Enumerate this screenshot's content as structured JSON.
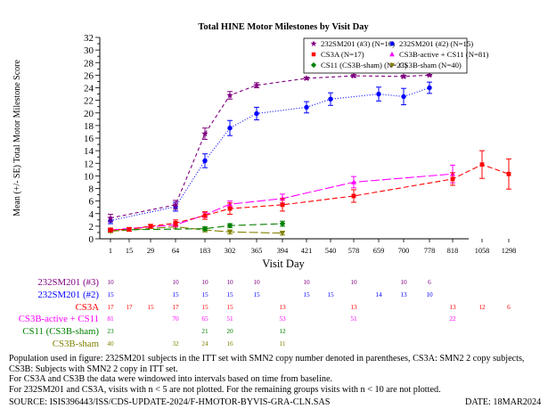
{
  "chart_data": {
    "type": "line",
    "title": "Total HINE Motor Milestones by Visit Day",
    "ylabel": "Mean (+/- SE) Total Motor Milestone Score",
    "xlabel": "Visit Day",
    "ylim": [
      0,
      32
    ],
    "yticks": [
      0,
      1,
      2,
      3,
      4,
      5,
      6,
      7,
      8,
      9,
      10,
      11,
      12,
      13,
      14,
      15,
      16,
      17,
      18,
      19,
      20,
      21,
      22,
      23,
      24,
      25,
      26,
      27,
      28,
      29,
      30,
      31,
      32
    ],
    "ytick_labels": [
      0,
      2,
      4,
      6,
      8,
      10,
      12,
      14,
      16,
      18,
      20,
      22,
      24,
      26,
      28,
      30,
      32
    ],
    "categories": [
      "1",
      "15",
      "29",
      "64",
      "183",
      "302",
      "365",
      "394",
      "421",
      "540",
      "578",
      "659",
      "700",
      "778",
      "818",
      "1058",
      "1298"
    ],
    "legend_position": "top-right",
    "series": [
      {
        "name": "232SM201 (#3) (N=10)",
        "table_label": "232SM201 (#3)",
        "color": "#800080",
        "marker": "star",
        "dash": "4,3",
        "points": [
          {
            "x": "1",
            "y": 3.3,
            "se": 0.6
          },
          {
            "x": "64",
            "y": 5.4,
            "se": 0.7
          },
          {
            "x": "183",
            "y": 16.7,
            "se": 0.9
          },
          {
            "x": "302",
            "y": 22.8,
            "se": 0.6
          },
          {
            "x": "365",
            "y": 24.4,
            "se": 0.4
          },
          {
            "x": "421",
            "y": 25.5,
            "se": 0.2
          },
          {
            "x": "578",
            "y": 25.9,
            "se": 0.2
          },
          {
            "x": "700",
            "y": 25.8,
            "se": 0.2
          },
          {
            "x": "778",
            "y": 26.0,
            "se": 0.1
          }
        ]
      },
      {
        "name": "232SM201 (#2) (N=15)",
        "table_label": "232SM201 (#2)",
        "color": "#0000ff",
        "marker": "circle",
        "dash": "1,2",
        "points": [
          {
            "x": "1",
            "y": 2.9,
            "se": 0.5
          },
          {
            "x": "64",
            "y": 5.1,
            "se": 0.7
          },
          {
            "x": "183",
            "y": 12.4,
            "se": 1.1
          },
          {
            "x": "302",
            "y": 17.6,
            "se": 1.2
          },
          {
            "x": "365",
            "y": 19.9,
            "se": 1.0
          },
          {
            "x": "421",
            "y": 20.9,
            "se": 0.9
          },
          {
            "x": "540",
            "y": 22.2,
            "se": 1.0
          },
          {
            "x": "659",
            "y": 23.0,
            "se": 1.1
          },
          {
            "x": "700",
            "y": 22.6,
            "se": 1.3
          },
          {
            "x": "778",
            "y": 24.0,
            "se": 0.9
          }
        ]
      },
      {
        "name": "CS3A (N=17)",
        "table_label": "CS3A",
        "color": "#ff0000",
        "marker": "square",
        "dash": "6,3",
        "points": [
          {
            "x": "1",
            "y": 1.4,
            "se": 0.3
          },
          {
            "x": "15",
            "y": 1.5,
            "se": 0.3
          },
          {
            "x": "29",
            "y": 2.0,
            "se": 0.3
          },
          {
            "x": "64",
            "y": 2.5,
            "se": 0.5
          },
          {
            "x": "183",
            "y": 3.7,
            "se": 0.6
          },
          {
            "x": "302",
            "y": 4.8,
            "se": 0.9
          },
          {
            "x": "394",
            "y": 5.4,
            "se": 1.0
          },
          {
            "x": "578",
            "y": 6.8,
            "se": 1.0
          },
          {
            "x": "818",
            "y": 9.5,
            "se": 1.0
          },
          {
            "x": "1058",
            "y": 11.8,
            "se": 2.2
          },
          {
            "x": "1298",
            "y": 10.3,
            "se": 2.4
          }
        ]
      },
      {
        "name": "CS3B-active + CS11 (N=81)",
        "table_label": "CS3B-active + CS11",
        "color": "#ff00ff",
        "marker": "triangle-up",
        "dash": "10,3",
        "points": [
          {
            "x": "1",
            "y": 1.4,
            "se": 0.2
          },
          {
            "x": "64",
            "y": 2.2,
            "se": 0.3
          },
          {
            "x": "183",
            "y": 3.8,
            "se": 0.4
          },
          {
            "x": "302",
            "y": 5.5,
            "se": 0.5
          },
          {
            "x": "394",
            "y": 6.4,
            "se": 0.7
          },
          {
            "x": "578",
            "y": 9.0,
            "se": 0.9
          },
          {
            "x": "818",
            "y": 10.3,
            "se": 1.4
          }
        ]
      },
      {
        "name": "CS11 (CS3B-sham) (N=23)",
        "table_label": "CS11 (CS3B-sham)",
        "color": "#008000",
        "marker": "diamond",
        "dash": "8,4",
        "points": [
          {
            "x": "1",
            "y": 1.4,
            "se": 0.2
          },
          {
            "x": "183",
            "y": 1.6,
            "se": 0.3
          },
          {
            "x": "302",
            "y": 2.1,
            "se": 0.3
          },
          {
            "x": "394",
            "y": 2.4,
            "se": 0.4
          }
        ]
      },
      {
        "name": "CS3B-sham (N=40)",
        "table_label": "CS3B-sham",
        "color": "#808000",
        "marker": "triangle-down",
        "dash": "10,3",
        "points": [
          {
            "x": "1",
            "y": 1.2,
            "se": 0.2
          },
          {
            "x": "64",
            "y": 1.9,
            "se": 0.3
          },
          {
            "x": "183",
            "y": 1.4,
            "se": 0.3
          },
          {
            "x": "302",
            "y": 1.1,
            "se": 0.3
          },
          {
            "x": "394",
            "y": 0.9,
            "se": 0.3
          }
        ]
      }
    ],
    "n_at_risk": [
      {
        "label": "232SM201 (#3)",
        "values": {
          "1": "10",
          "64": "10",
          "183": "10",
          "302": "10",
          "365": "10",
          "421": "10",
          "578": "10",
          "700": "10",
          "778": "6"
        }
      },
      {
        "label": "232SM201 (#2)",
        "values": {
          "1": "15",
          "64": "15",
          "183": "15",
          "302": "15",
          "365": "15",
          "421": "15",
          "540": "15",
          "659": "14",
          "700": "13",
          "778": "10"
        }
      },
      {
        "label": "CS3A",
        "values": {
          "1": "17",
          "15": "17",
          "29": "15",
          "64": "17",
          "183": "15",
          "302": "15",
          "394": "13",
          "578": "13",
          "818": "13",
          "1058": "12",
          "1298": "6"
        }
      },
      {
        "label": "CS3B-active + CS11",
        "values": {
          "1": "81",
          "64": "70",
          "183": "65",
          "302": "51",
          "394": "53",
          "578": "51",
          "818": "22"
        }
      },
      {
        "label": "CS11 (CS3B-sham)",
        "values": {
          "1": "23",
          "183": "21",
          "302": "20",
          "394": "12"
        }
      },
      {
        "label": "CS3B-sham",
        "values": {
          "1": "40",
          "64": "32",
          "183": "24",
          "302": "16",
          "394": "11"
        }
      }
    ]
  },
  "footnotes": [
    "Population used in figure: 232SM201 subjects in the ITT set with SMN2 copy number denoted in parentheses, CS3A: SMN2 2 copy subjects,",
    "CS3B: Subjects with SMN2 2 copy in ITT set.",
    "For CS3A and CS3B the data were windowed into intervals based on time from baseline.",
    "For 232SM201 and CS3A, visits with n < 5 are not plotted. For the remaining groups visits with n < 10 are not plotted."
  ],
  "source": "SOURCE: ISIS396443/ISS/CDS-UPDATE-2024/F-HMOTOR-BYVIS-GRA-CLN.SAS",
  "date": "DATE: 18MAR2024"
}
